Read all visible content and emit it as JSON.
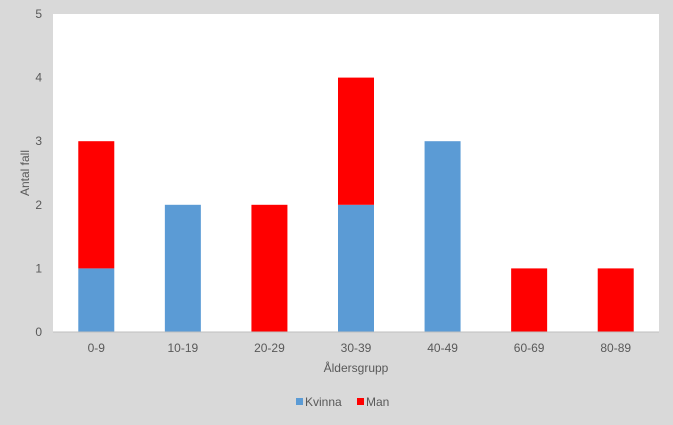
{
  "chart_data": {
    "type": "bar",
    "stacked": true,
    "categories": [
      "0-9",
      "10-19",
      "20-29",
      "30-39",
      "40-49",
      "60-69",
      "80-89"
    ],
    "series": [
      {
        "name": "Kvinna",
        "color": "#5b9bd5",
        "values": [
          1,
          2,
          0,
          2,
          3,
          0,
          0
        ]
      },
      {
        "name": "Man",
        "color": "#ff0000",
        "values": [
          2,
          0,
          2,
          2,
          0,
          1,
          1
        ]
      }
    ],
    "xlabel": "Åldersgrupp",
    "ylabel": "Antal fall",
    "ylim": [
      0,
      5
    ],
    "yticks": [
      "0",
      "1",
      "2",
      "3",
      "4",
      "5"
    ],
    "grid": false,
    "legend_position": "bottom"
  }
}
